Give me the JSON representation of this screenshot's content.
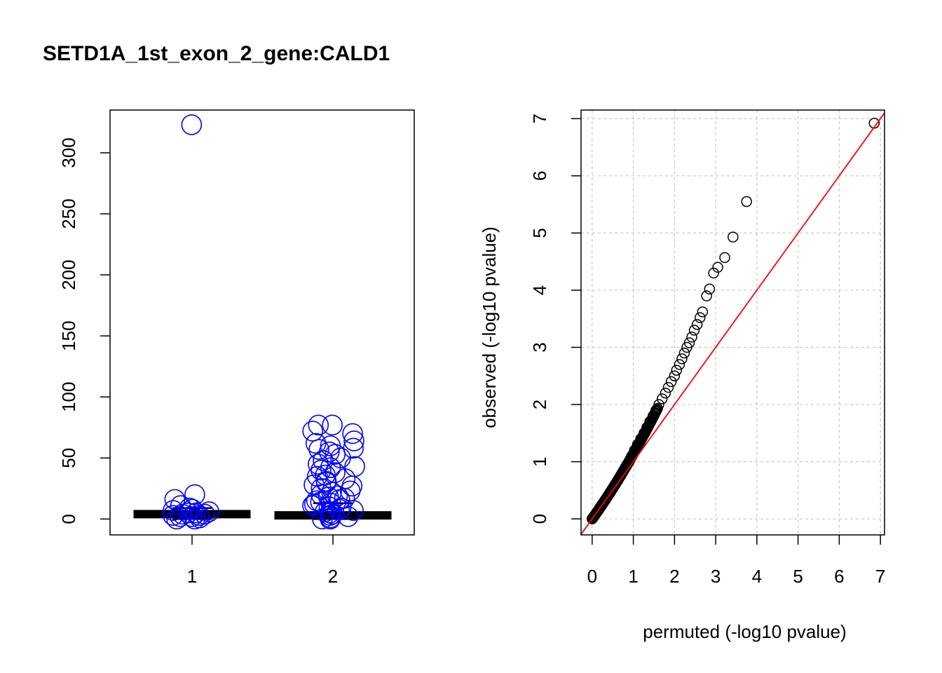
{
  "title": "SETD1A_1st_exon_2_gene:CALD1",
  "chart_data": [
    {
      "type": "boxplot",
      "categories": [
        "1",
        "2"
      ],
      "ylim": [
        -13,
        335
      ],
      "yticks": [
        0,
        50,
        100,
        150,
        200,
        250,
        300
      ],
      "xlabel": "",
      "ylabel": "",
      "point_color": "#0000ff",
      "boxes": [
        {
          "category": "1",
          "q1": 2,
          "median": 4,
          "q3": 6,
          "whisker_low": 0,
          "whisker_high": 9
        },
        {
          "category": "2",
          "q1": 1,
          "median": 3,
          "q3": 5,
          "whisker_low": 0,
          "whisker_high": 13
        }
      ],
      "points": [
        {
          "category": "1",
          "values": [
            323,
            20,
            16,
            11,
            9,
            8,
            7,
            6,
            5,
            5,
            4,
            4,
            3,
            3,
            2,
            2,
            1,
            0,
            0
          ]
        },
        {
          "category": "2",
          "values": [
            77,
            77,
            72,
            70,
            64,
            62,
            60,
            58,
            57,
            55,
            53,
            50,
            48,
            45,
            43,
            42,
            40,
            38,
            36,
            35,
            33,
            31,
            30,
            28,
            27,
            25,
            23,
            22,
            20,
            19,
            18,
            17,
            16,
            15,
            14,
            13,
            12,
            11,
            10,
            9,
            8,
            7,
            6,
            5,
            4,
            3,
            2,
            1,
            0,
            0
          ]
        }
      ]
    },
    {
      "type": "scatter",
      "xlabel": "permuted (-log10 pvalue)",
      "ylabel": "observed (-log10 pvalue)",
      "xlim": [
        -0.27,
        7.1
      ],
      "ylim": [
        -0.28,
        7.15
      ],
      "xticks": [
        0,
        1,
        2,
        3,
        4,
        5,
        6,
        7
      ],
      "yticks": [
        0,
        1,
        2,
        3,
        4,
        5,
        6,
        7
      ],
      "grid": true,
      "reference_line": {
        "slope": 1,
        "intercept": 0,
        "color": "#ff0000"
      },
      "points": [
        [
          6.85,
          6.92
        ],
        [
          3.75,
          5.55
        ],
        [
          3.42,
          4.93
        ],
        [
          3.22,
          4.57
        ],
        [
          3.05,
          4.4
        ],
        [
          2.95,
          4.3
        ],
        [
          2.85,
          4.02
        ],
        [
          2.78,
          3.9
        ],
        [
          2.68,
          3.62
        ],
        [
          2.62,
          3.52
        ],
        [
          2.55,
          3.4
        ],
        [
          2.48,
          3.3
        ],
        [
          2.42,
          3.18
        ],
        [
          2.36,
          3.08
        ],
        [
          2.3,
          3.0
        ],
        [
          2.24,
          2.9
        ],
        [
          2.18,
          2.8
        ],
        [
          2.12,
          2.7
        ],
        [
          2.05,
          2.6
        ],
        [
          2.0,
          2.5
        ],
        [
          1.92,
          2.4
        ],
        [
          1.85,
          2.3
        ],
        [
          1.78,
          2.2
        ],
        [
          1.7,
          2.1
        ],
        [
          1.62,
          2.0
        ],
        [
          1.55,
          1.9
        ],
        [
          1.48,
          1.8
        ],
        [
          1.4,
          1.7
        ],
        [
          1.33,
          1.6
        ],
        [
          1.26,
          1.5
        ],
        [
          1.18,
          1.4
        ],
        [
          1.1,
          1.3
        ],
        [
          1.03,
          1.2
        ],
        [
          0.96,
          1.1
        ],
        [
          0.9,
          1.0
        ],
        [
          0.83,
          0.92
        ],
        [
          0.76,
          0.84
        ],
        [
          0.7,
          0.76
        ],
        [
          0.63,
          0.68
        ],
        [
          0.56,
          0.6
        ],
        [
          0.5,
          0.53
        ],
        [
          0.44,
          0.46
        ],
        [
          0.38,
          0.4
        ],
        [
          0.32,
          0.33
        ],
        [
          0.26,
          0.27
        ],
        [
          0.2,
          0.21
        ],
        [
          0.15,
          0.15
        ],
        [
          0.1,
          0.1
        ],
        [
          0.05,
          0.05
        ],
        [
          0.02,
          0.02
        ],
        [
          0.0,
          0.0
        ]
      ]
    }
  ]
}
